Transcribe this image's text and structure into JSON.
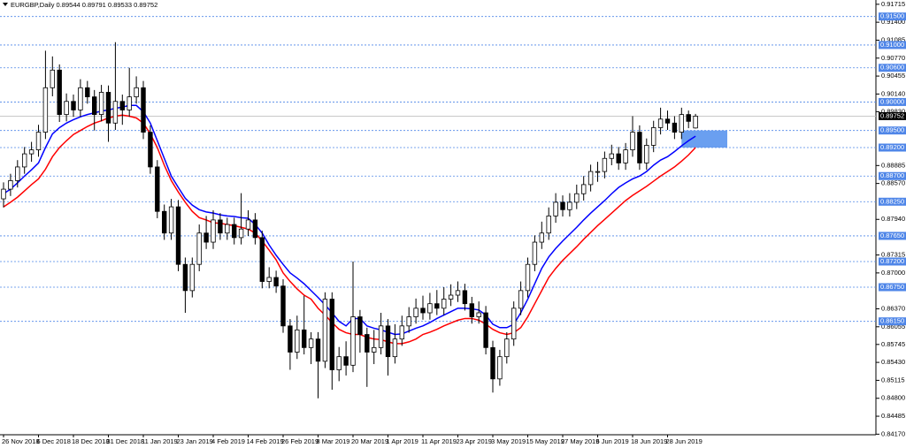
{
  "chart_data": {
    "type": "candlestick",
    "title": "EURGBP,Daily  0.89544 0.89791 0.89533 0.89752",
    "categories": [
      "26 Nov 2018",
      null,
      null,
      null,
      null,
      "6 Dec 2018",
      null,
      null,
      null,
      null,
      "18 Dec 2018",
      null,
      null,
      null,
      null,
      "31 Dec 2018",
      null,
      null,
      null,
      null,
      "11 Jan 2019",
      null,
      null,
      null,
      null,
      "23 Jan 2019",
      null,
      null,
      null,
      null,
      "4 Feb 2019",
      null,
      null,
      null,
      null,
      "14 Feb 2019",
      null,
      null,
      null,
      null,
      "26 Feb 2019",
      null,
      null,
      null,
      null,
      "8 Mar 2019",
      null,
      null,
      null,
      null,
      "20 Mar 2019",
      null,
      null,
      null,
      null,
      "1 Apr 2019",
      null,
      null,
      null,
      null,
      "11 Apr 2019",
      null,
      null,
      null,
      null,
      "23 Apr 2019",
      null,
      null,
      null,
      null,
      "3 May 2019",
      null,
      null,
      null,
      null,
      "15 May 2019",
      null,
      null,
      null,
      null,
      "27 May 2019",
      null,
      null,
      null,
      null,
      "6 Jun 2019",
      null,
      null,
      null,
      null,
      "18 Jun 2019",
      null,
      null,
      null,
      null,
      "28 Jun 2019",
      null,
      null,
      null,
      null
    ],
    "open": [
      0.883,
      0.8847,
      0.8862,
      0.8886,
      0.8909,
      0.8916,
      0.8947,
      0.9025,
      0.9056,
      0.8978,
      0.9001,
      0.8986,
      0.9025,
      0.9009,
      0.8978,
      0.9017,
      0.8963,
      0.9001,
      0.8986,
      0.9009,
      0.9025,
      0.8947,
      0.8886,
      0.8808,
      0.877,
      0.8816,
      0.8715,
      0.8669,
      0.8715,
      0.877,
      0.8754,
      0.8793,
      0.877,
      0.8785,
      0.8762,
      0.8777,
      0.8793,
      0.8762,
      0.8685,
      0.8692,
      0.8677,
      0.8607,
      0.8561,
      0.86,
      0.8569,
      0.8584,
      0.8545,
      0.8654,
      0.853,
      0.8553,
      0.8538,
      0.8623,
      0.8592,
      0.8561,
      0.8569,
      0.8607,
      0.8553,
      0.8584,
      0.8607,
      0.8623,
      0.8638,
      0.863,
      0.8646,
      0.8638,
      0.8654,
      0.8661,
      0.8669,
      0.8646,
      0.8623,
      0.863,
      0.8569,
      0.8514,
      0.8553,
      0.8584,
      0.8638,
      0.8669,
      0.8715,
      0.8754,
      0.877,
      0.88,
      0.8824,
      0.8811,
      0.8824,
      0.8839,
      0.8855,
      0.8878,
      0.8878,
      0.8901,
      0.8909,
      0.8893,
      0.8916,
      0.8947,
      0.8893,
      0.8924,
      0.8955,
      0.897,
      0.8963,
      0.8947,
      0.8978,
      0.89544
    ],
    "high": [
      0.8859,
      0.8874,
      0.8898,
      0.8921,
      0.893,
      0.896,
      0.909,
      0.908,
      0.9066,
      0.9015,
      0.9013,
      0.904,
      0.9037,
      0.9021,
      0.903,
      0.9029,
      0.9105,
      0.9013,
      0.906,
      0.9045,
      0.9037,
      0.8959,
      0.8898,
      0.882,
      0.883,
      0.8828,
      0.8727,
      0.8727,
      0.8785,
      0.88,
      0.881,
      0.8805,
      0.8797,
      0.8797,
      0.884,
      0.881,
      0.8805,
      0.8774,
      0.871,
      0.8704,
      0.8689,
      0.8619,
      0.8625,
      0.866,
      0.8596,
      0.8596,
      0.8666,
      0.8666,
      0.857,
      0.858,
      0.872,
      0.8635,
      0.8604,
      0.86,
      0.863,
      0.8619,
      0.861,
      0.8625,
      0.864,
      0.8655,
      0.866,
      0.8665,
      0.867,
      0.8675,
      0.868,
      0.8685,
      0.8681,
      0.8658,
      0.865,
      0.8642,
      0.8581,
      0.8565,
      0.8596,
      0.865,
      0.8685,
      0.8727,
      0.8766,
      0.879,
      0.8815,
      0.884,
      0.8836,
      0.884,
      0.8855,
      0.887,
      0.889,
      0.8895,
      0.8913,
      0.8925,
      0.8921,
      0.8928,
      0.8975,
      0.8959,
      0.8936,
      0.8967,
      0.899,
      0.8985,
      0.8975,
      0.899,
      0.8985,
      0.89791
    ],
    "low": [
      0.8815,
      0.8835,
      0.885,
      0.8874,
      0.8895,
      0.8904,
      0.8935,
      0.901,
      0.8965,
      0.8966,
      0.8974,
      0.8974,
      0.8997,
      0.895,
      0.8966,
      0.893,
      0.8951,
      0.896,
      0.8974,
      0.8997,
      0.8935,
      0.8874,
      0.8796,
      0.8758,
      0.8758,
      0.8703,
      0.863,
      0.8657,
      0.8703,
      0.8742,
      0.8742,
      0.8758,
      0.8758,
      0.875,
      0.875,
      0.8765,
      0.875,
      0.8673,
      0.8673,
      0.8665,
      0.8595,
      0.853,
      0.8549,
      0.8557,
      0.854,
      0.848,
      0.8533,
      0.8495,
      0.851,
      0.852,
      0.8526,
      0.856,
      0.85,
      0.854,
      0.8557,
      0.852,
      0.8541,
      0.8572,
      0.8595,
      0.8611,
      0.8618,
      0.8618,
      0.8626,
      0.8626,
      0.8642,
      0.8649,
      0.8634,
      0.8611,
      0.8611,
      0.8557,
      0.849,
      0.8502,
      0.8541,
      0.8572,
      0.8626,
      0.8657,
      0.8703,
      0.8742,
      0.8758,
      0.8788,
      0.8799,
      0.8799,
      0.8812,
      0.8827,
      0.8843,
      0.886,
      0.8866,
      0.8889,
      0.8881,
      0.8881,
      0.8904,
      0.8881,
      0.8881,
      0.8912,
      0.8943,
      0.8951,
      0.8935,
      0.8935,
      0.8954,
      0.89533
    ],
    "close": [
      0.8847,
      0.8862,
      0.8886,
      0.8909,
      0.8916,
      0.8947,
      0.9025,
      0.9056,
      0.8978,
      0.9001,
      0.8986,
      0.9025,
      0.9009,
      0.8978,
      0.9017,
      0.8963,
      0.9001,
      0.8986,
      0.9009,
      0.9025,
      0.8947,
      0.8886,
      0.8808,
      0.877,
      0.8816,
      0.8715,
      0.8669,
      0.8715,
      0.877,
      0.8754,
      0.8793,
      0.877,
      0.8785,
      0.8762,
      0.8777,
      0.8793,
      0.8762,
      0.8685,
      0.8692,
      0.8677,
      0.8607,
      0.8561,
      0.86,
      0.8569,
      0.8584,
      0.8545,
      0.8654,
      0.853,
      0.8553,
      0.8538,
      0.8623,
      0.8592,
      0.8561,
      0.8569,
      0.8607,
      0.8553,
      0.8584,
      0.8607,
      0.8623,
      0.8638,
      0.863,
      0.8646,
      0.8638,
      0.8654,
      0.8661,
      0.8669,
      0.8646,
      0.8623,
      0.863,
      0.8569,
      0.8514,
      0.8553,
      0.8584,
      0.8638,
      0.8669,
      0.8715,
      0.8754,
      0.877,
      0.88,
      0.8824,
      0.8811,
      0.8824,
      0.8839,
      0.8855,
      0.8878,
      0.8878,
      0.8901,
      0.8909,
      0.8893,
      0.8916,
      0.8947,
      0.8893,
      0.8924,
      0.8955,
      0.897,
      0.8963,
      0.8947,
      0.8978,
      0.8966,
      0.89752
    ],
    "lines": [
      {
        "color": "#0000ff",
        "values": [
          0.8839,
          0.8847,
          0.8858,
          0.887,
          0.8881,
          0.8893,
          0.892,
          0.8944,
          0.8955,
          0.8963,
          0.8969,
          0.8974,
          0.8978,
          0.8981,
          0.8984,
          0.8986,
          0.8989,
          0.8991,
          0.8994,
          0.8994,
          0.8983,
          0.8963,
          0.8932,
          0.8901,
          0.887,
          0.885,
          0.8831,
          0.8819,
          0.8811,
          0.8807,
          0.8805,
          0.8802,
          0.88,
          0.8799,
          0.8797,
          0.8796,
          0.8785,
          0.877,
          0.8749,
          0.8731,
          0.8715,
          0.87,
          0.8691,
          0.8681,
          0.8669,
          0.8657,
          0.8644,
          0.863,
          0.8615,
          0.8607,
          0.862,
          0.862,
          0.8607,
          0.8603,
          0.86,
          0.8596,
          0.8592,
          0.8593,
          0.8598,
          0.8603,
          0.8607,
          0.8613,
          0.862,
          0.8626,
          0.8632,
          0.8638,
          0.8638,
          0.8637,
          0.8635,
          0.8626,
          0.861,
          0.8604,
          0.8604,
          0.861,
          0.863,
          0.8654,
          0.8681,
          0.8708,
          0.8728,
          0.8743,
          0.8756,
          0.8768,
          0.878,
          0.8793,
          0.8805,
          0.8816,
          0.8827,
          0.8839,
          0.885,
          0.8858,
          0.8865,
          0.887,
          0.8878,
          0.8889,
          0.8898,
          0.8904,
          0.8913,
          0.8923,
          0.8932,
          0.894
        ]
      },
      {
        "color": "#ff0000",
        "values": [
          0.8816,
          0.8824,
          0.8833,
          0.8844,
          0.8855,
          0.8865,
          0.8882,
          0.8904,
          0.892,
          0.8932,
          0.8943,
          0.895,
          0.8957,
          0.8963,
          0.8967,
          0.8972,
          0.8975,
          0.8977,
          0.8975,
          0.8972,
          0.8963,
          0.8944,
          0.892,
          0.8889,
          0.8862,
          0.8842,
          0.8824,
          0.8808,
          0.8797,
          0.8793,
          0.8788,
          0.8787,
          0.8785,
          0.8783,
          0.878,
          0.8777,
          0.877,
          0.8756,
          0.874,
          0.8723,
          0.87,
          0.8685,
          0.8672,
          0.8661,
          0.8654,
          0.8638,
          0.8626,
          0.8613,
          0.8601,
          0.8595,
          0.8592,
          0.8592,
          0.8587,
          0.8584,
          0.8583,
          0.8579,
          0.8576,
          0.8576,
          0.8579,
          0.8584,
          0.8592,
          0.8596,
          0.8601,
          0.8607,
          0.8612,
          0.8617,
          0.862,
          0.862,
          0.8617,
          0.861,
          0.8601,
          0.8595,
          0.8592,
          0.8595,
          0.8604,
          0.8623,
          0.8646,
          0.8669,
          0.8692,
          0.8708,
          0.8722,
          0.8734,
          0.8746,
          0.8759,
          0.8771,
          0.8783,
          0.8794,
          0.8805,
          0.8816,
          0.8827,
          0.8836,
          0.8844,
          0.8852,
          0.8861,
          0.887,
          0.8878,
          0.8886,
          0.8896,
          0.8907,
          0.892
        ]
      }
    ],
    "ylim": [
      0.8416,
      0.9179
    ],
    "yticks": [
      0.91715,
      {
        "value": 0.914,
        "label": "0.91400"
      },
      0.91085,
      {
        "value": 0.9077,
        "label": "0.90770"
      },
      0.90455,
      {
        "value": 0.9014,
        "label": "0.90140"
      },
      {
        "value": 0.8983,
        "label": "0.89830"
      },
      0.88885,
      {
        "value": 0.8857,
        "label": "0.88570"
      },
      {
        "value": 0.8794,
        "label": "0.87940"
      },
      0.87315,
      {
        "value": 0.87,
        "label": "0.87000"
      },
      {
        "value": 0.8637,
        "label": "0.86370"
      },
      0.86055,
      0.85745,
      {
        "value": 0.8543,
        "label": "0.85430"
      },
      0.85115,
      {
        "value": 0.848,
        "label": "0.84800"
      },
      0.84485,
      {
        "value": 0.8417,
        "label": "0.84170"
      }
    ],
    "levels": [
      {
        "value": 0.915,
        "label": "0.91500"
      },
      {
        "value": 0.91,
        "label": "0.91000"
      },
      {
        "value": 0.906,
        "label": "0.90600"
      },
      {
        "value": 0.9,
        "label": "0.90000"
      },
      {
        "value": 0.895,
        "label": "0.89500"
      },
      {
        "value": 0.892,
        "label": "0.89200"
      },
      {
        "value": 0.887,
        "label": "0.88700"
      },
      {
        "value": 0.8825,
        "label": "0.88250"
      },
      {
        "value": 0.8765,
        "label": "0.87650"
      },
      {
        "value": 0.872,
        "label": "0.87200"
      },
      {
        "value": 0.8675,
        "label": "0.86750"
      },
      {
        "value": 0.8615,
        "label": "0.86150"
      }
    ],
    "levels_color": "#4f86e8",
    "zone": {
      "from": 0.892,
      "to": 0.895,
      "color": "#6a9ff0"
    },
    "bull_color": "#ffffff",
    "bear_color": "#000000"
  }
}
